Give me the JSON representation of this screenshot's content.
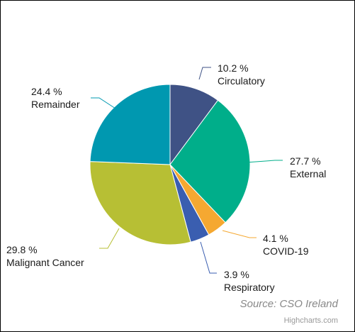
{
  "chart_data": {
    "type": "pie",
    "values_unit": "%",
    "slices": [
      {
        "name": "Circulatory",
        "value": 10.2,
        "value_label": "10.2 %",
        "color": "#3f5285"
      },
      {
        "name": "External",
        "value": 27.7,
        "value_label": "27.7 %",
        "color": "#00ae8a"
      },
      {
        "name": "COVID-19",
        "value": 4.1,
        "value_label": "4.1 %",
        "color": "#f5a831"
      },
      {
        "name": "Respiratory",
        "value": 3.9,
        "value_label": "3.9 %",
        "color": "#3a5eb0"
      },
      {
        "name": "Malignant Cancer",
        "value": 29.8,
        "value_label": "29.8 %",
        "color": "#b7bf34"
      },
      {
        "name": "Remainder",
        "value": 24.4,
        "value_label": "24.4 %",
        "color": "#0098b0"
      }
    ]
  },
  "source_text": "Source: CSO Ireland",
  "credit_text": "Highcharts.com"
}
